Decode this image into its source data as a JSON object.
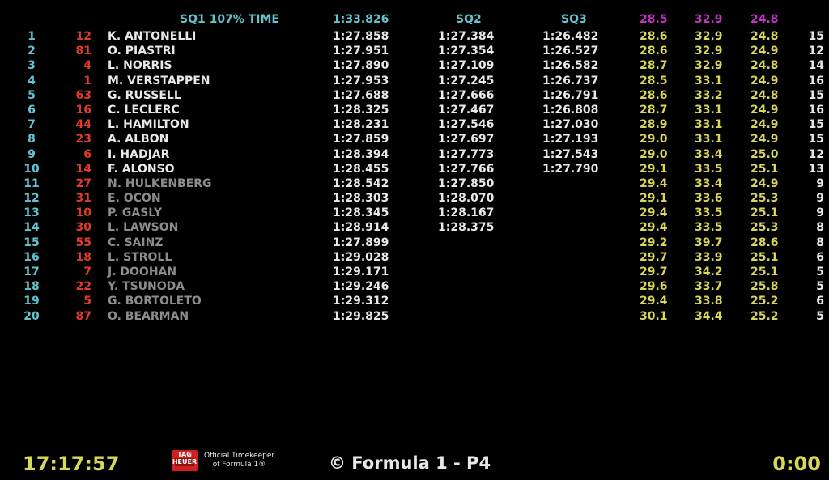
{
  "header": {
    "q1_label": "SQ1 107% TIME",
    "q1_cutoff": "1:33.826",
    "q2_label": "SQ2",
    "q3_label": "SQ3",
    "best_s1": "28.5",
    "best_s2": "32.9",
    "best_s3": "24.8"
  },
  "rows": [
    {
      "pos": "1",
      "num": "12",
      "driver": "K. ANTONELLI",
      "q1": "1:27.858",
      "q2": "1:27.384",
      "q3": "1:26.482",
      "s1": "28.6",
      "s2": "32.9",
      "s3": "24.8",
      "laps": "15",
      "out": false
    },
    {
      "pos": "2",
      "num": "81",
      "driver": "O. PIASTRI",
      "q1": "1:27.951",
      "q2": "1:27.354",
      "q3": "1:26.527",
      "s1": "28.6",
      "s2": "32.9",
      "s3": "24.9",
      "laps": "12",
      "out": false
    },
    {
      "pos": "3",
      "num": "4",
      "driver": "L. NORRIS",
      "q1": "1:27.890",
      "q2": "1:27.109",
      "q3": "1:26.582",
      "s1": "28.7",
      "s2": "32.9",
      "s3": "24.8",
      "laps": "14",
      "out": false
    },
    {
      "pos": "4",
      "num": "1",
      "driver": "M. VERSTAPPEN",
      "q1": "1:27.953",
      "q2": "1:27.245",
      "q3": "1:26.737",
      "s1": "28.5",
      "s2": "33.1",
      "s3": "24.9",
      "laps": "16",
      "out": false
    },
    {
      "pos": "5",
      "num": "63",
      "driver": "G. RUSSELL",
      "q1": "1:27.688",
      "q2": "1:27.666",
      "q3": "1:26.791",
      "s1": "28.6",
      "s2": "33.2",
      "s3": "24.8",
      "laps": "15",
      "out": false
    },
    {
      "pos": "6",
      "num": "16",
      "driver": "C. LECLERC",
      "q1": "1:28.325",
      "q2": "1:27.467",
      "q3": "1:26.808",
      "s1": "28.7",
      "s2": "33.1",
      "s3": "24.9",
      "laps": "16",
      "out": false
    },
    {
      "pos": "7",
      "num": "44",
      "driver": "L. HAMILTON",
      "q1": "1:28.231",
      "q2": "1:27.546",
      "q3": "1:27.030",
      "s1": "28.9",
      "s2": "33.1",
      "s3": "24.9",
      "laps": "15",
      "out": false
    },
    {
      "pos": "8",
      "num": "23",
      "driver": "A. ALBON",
      "q1": "1:27.859",
      "q2": "1:27.697",
      "q3": "1:27.193",
      "s1": "29.0",
      "s2": "33.1",
      "s3": "24.9",
      "laps": "15",
      "out": false
    },
    {
      "pos": "9",
      "num": "6",
      "driver": "I. HADJAR",
      "q1": "1:28.394",
      "q2": "1:27.773",
      "q3": "1:27.543",
      "s1": "29.0",
      "s2": "33.4",
      "s3": "25.0",
      "laps": "12",
      "out": false
    },
    {
      "pos": "10",
      "num": "14",
      "driver": "F. ALONSO",
      "q1": "1:28.455",
      "q2": "1:27.766",
      "q3": "1:27.790",
      "s1": "29.1",
      "s2": "33.5",
      "s3": "25.1",
      "laps": "13",
      "out": false
    },
    {
      "pos": "11",
      "num": "27",
      "driver": "N. HULKENBERG",
      "q1": "1:28.542",
      "q2": "1:27.850",
      "q3": "",
      "s1": "29.4",
      "s2": "33.4",
      "s3": "24.9",
      "laps": "9",
      "out": true
    },
    {
      "pos": "12",
      "num": "31",
      "driver": "E. OCON",
      "q1": "1:28.303",
      "q2": "1:28.070",
      "q3": "",
      "s1": "29.1",
      "s2": "33.6",
      "s3": "25.3",
      "laps": "9",
      "out": true
    },
    {
      "pos": "13",
      "num": "10",
      "driver": "P. GASLY",
      "q1": "1:28.345",
      "q2": "1:28.167",
      "q3": "",
      "s1": "29.4",
      "s2": "33.5",
      "s3": "25.1",
      "laps": "9",
      "out": true
    },
    {
      "pos": "14",
      "num": "30",
      "driver": "L. LAWSON",
      "q1": "1:28.914",
      "q2": "1:28.375",
      "q3": "",
      "s1": "29.4",
      "s2": "33.5",
      "s3": "25.3",
      "laps": "8",
      "out": true
    },
    {
      "pos": "15",
      "num": "55",
      "driver": "C. SAINZ",
      "q1": "1:27.899",
      "q2": "",
      "q3": "",
      "s1": "29.2",
      "s2": "39.7",
      "s3": "28.6",
      "laps": "8",
      "out": true
    },
    {
      "pos": "16",
      "num": "18",
      "driver": "L. STROLL",
      "q1": "1:29.028",
      "q2": "",
      "q3": "",
      "s1": "29.7",
      "s2": "33.9",
      "s3": "25.1",
      "laps": "6",
      "out": true
    },
    {
      "pos": "17",
      "num": "7",
      "driver": "J. DOOHAN",
      "q1": "1:29.171",
      "q2": "",
      "q3": "",
      "s1": "29.7",
      "s2": "34.2",
      "s3": "25.1",
      "laps": "5",
      "out": true
    },
    {
      "pos": "18",
      "num": "22",
      "driver": "Y. TSUNODA",
      "q1": "1:29.246",
      "q2": "",
      "q3": "",
      "s1": "29.6",
      "s2": "33.7",
      "s3": "25.8",
      "laps": "5",
      "out": true
    },
    {
      "pos": "19",
      "num": "5",
      "driver": "G. BORTOLETO",
      "q1": "1:29.312",
      "q2": "",
      "q3": "",
      "s1": "29.4",
      "s2": "33.8",
      "s3": "25.2",
      "laps": "6",
      "out": true
    },
    {
      "pos": "20",
      "num": "87",
      "driver": "O. BEARMAN",
      "q1": "1:29.825",
      "q2": "",
      "q3": "",
      "s1": "30.1",
      "s2": "34.4",
      "s3": "25.2",
      "laps": "5",
      "out": true
    }
  ],
  "footer": {
    "clock": "17:17:57",
    "logo_text": "TAG HEUER",
    "timekeeper_line1": "Official Timekeeper",
    "timekeeper_line2": "of Formula 1®",
    "copyright": "© Formula 1 - P4",
    "timer": "0:00"
  },
  "colors": {
    "cyan": "#63c3cf",
    "red_numbers": "#e03a2a",
    "yellow_sectors": "#d8d75a",
    "magenta_best": "#c832c8",
    "eliminated_grey": "#8c8c8c"
  }
}
